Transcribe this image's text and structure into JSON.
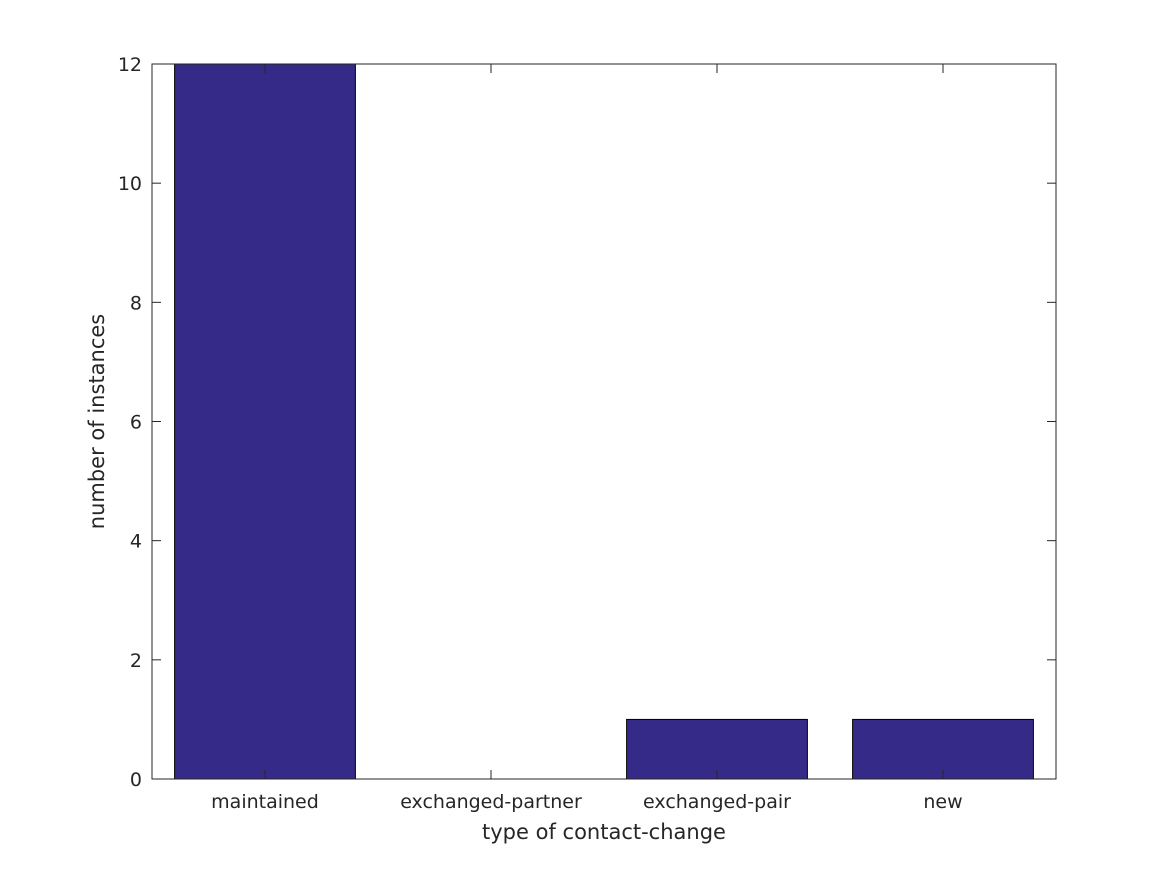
{
  "chart_data": {
    "type": "bar",
    "categories": [
      "maintained",
      "exchanged-partner",
      "exchanged-pair",
      "new"
    ],
    "values": [
      12,
      0,
      1,
      1
    ],
    "title": "",
    "xlabel": "type of contact-change",
    "ylabel": "number of instances",
    "ylim": [
      0,
      12
    ],
    "yticks": [
      "0",
      "2",
      "4",
      "6",
      "8",
      "10",
      "12"
    ],
    "grid": false,
    "legend": "none",
    "colors": {
      "bar_fill": "#352A87",
      "bar_edge": "#000000",
      "axis": "#262626",
      "background": "#FFFFFF"
    }
  }
}
